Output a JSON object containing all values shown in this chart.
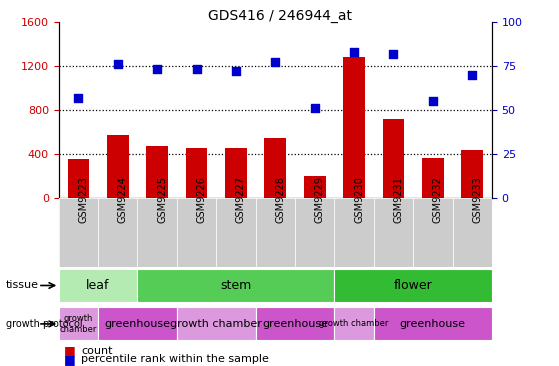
{
  "title": "GDS416 / 246944_at",
  "samples": [
    "GSM9223",
    "GSM9224",
    "GSM9225",
    "GSM9226",
    "GSM9227",
    "GSM9228",
    "GSM9229",
    "GSM9230",
    "GSM9231",
    "GSM9232",
    "GSM9233"
  ],
  "counts": [
    350,
    570,
    470,
    450,
    450,
    540,
    200,
    1280,
    720,
    360,
    430
  ],
  "percentiles": [
    57,
    76,
    73,
    73,
    72,
    77,
    51,
    83,
    82,
    55,
    70
  ],
  "ylim_left": [
    0,
    1600
  ],
  "ylim_right": [
    0,
    100
  ],
  "yticks_left": [
    0,
    400,
    800,
    1200,
    1600
  ],
  "yticks_right": [
    0,
    25,
    50,
    75,
    100
  ],
  "bar_color": "#cc0000",
  "dot_color": "#0000cc",
  "tissue_groups": [
    {
      "label": "leaf",
      "start": 0,
      "end": 2,
      "color": "#b3ebb3"
    },
    {
      "label": "stem",
      "start": 2,
      "end": 7,
      "color": "#55cc55"
    },
    {
      "label": "flower",
      "start": 7,
      "end": 11,
      "color": "#33bb33"
    }
  ],
  "growth_groups": [
    {
      "label": "growth\nchamber",
      "start": 0,
      "end": 1,
      "color": "#dd99dd"
    },
    {
      "label": "greenhouse",
      "start": 1,
      "end": 3,
      "color": "#cc55cc"
    },
    {
      "label": "growth chamber",
      "start": 3,
      "end": 5,
      "color": "#dd99dd"
    },
    {
      "label": "greenhouse",
      "start": 5,
      "end": 7,
      "color": "#cc55cc"
    },
    {
      "label": "growth chamber",
      "start": 7,
      "end": 8,
      "color": "#dd99dd"
    },
    {
      "label": "greenhouse",
      "start": 8,
      "end": 11,
      "color": "#cc55cc"
    }
  ],
  "tick_label_color_left": "#cc0000",
  "tick_label_color_right": "#0000cc",
  "grid_yticks": [
    400,
    800,
    1200
  ],
  "xtick_bg_color": "#cccccc"
}
